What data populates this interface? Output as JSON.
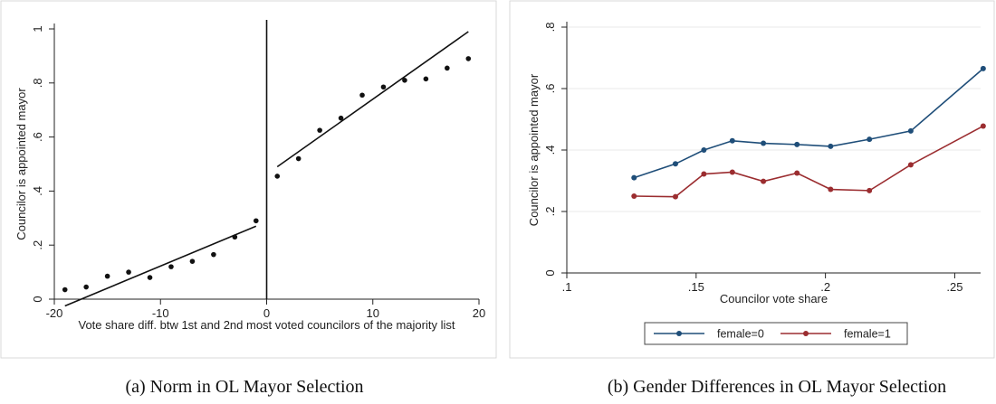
{
  "captions": {
    "left": "(a)  Norm in OL Mayor Selection",
    "right": "(b)  Gender Differences in OL Mayor Selection"
  },
  "chart_data": [
    {
      "type": "scatter",
      "title": "",
      "xlabel": "Vote share diff. btw 1st and 2nd most voted councilors of the majority list",
      "ylabel": "Councilor is appointed mayor",
      "xlim": [
        -20,
        20
      ],
      "ylim": [
        0,
        1
      ],
      "xticks": [
        -20,
        -10,
        0,
        10,
        20
      ],
      "xtick_labels": [
        "-20",
        "-10",
        "0",
        "10",
        "20"
      ],
      "yticks": [
        0,
        0.2,
        0.4,
        0.6,
        0.8,
        1
      ],
      "ytick_labels": [
        "0",
        ".2",
        ".4",
        ".6",
        ".8",
        "1"
      ],
      "grid": false,
      "cutoff": 0,
      "points": {
        "x": [
          -19,
          -17,
          -15,
          -13,
          -11,
          -9,
          -7,
          -5,
          -3,
          -1,
          1,
          3,
          5,
          7,
          9,
          11,
          13,
          15,
          17,
          19
        ],
        "y": [
          0.035,
          0.045,
          0.085,
          0.1,
          0.08,
          0.12,
          0.14,
          0.165,
          0.23,
          0.29,
          0.455,
          0.52,
          0.625,
          0.67,
          0.755,
          0.785,
          0.81,
          0.815,
          0.855,
          0.89
        ]
      },
      "fit_lines": [
        {
          "x": [
            -19,
            -1
          ],
          "y": [
            -0.025,
            0.27
          ]
        },
        {
          "x": [
            1,
            19
          ],
          "y": [
            0.49,
            0.99
          ]
        }
      ]
    },
    {
      "type": "line",
      "title": "",
      "xlabel": "Councilor vote share",
      "ylabel": "Councilor is appointed mayor",
      "xlim": [
        0.1,
        0.26
      ],
      "ylim": [
        0,
        0.8
      ],
      "xticks": [
        0.1,
        0.15,
        0.2,
        0.25
      ],
      "xtick_labels": [
        ".1",
        ".15",
        ".2",
        ".25"
      ],
      "yticks": [
        0,
        0.2,
        0.4,
        0.6,
        0.8
      ],
      "ytick_labels": [
        "0",
        ".2",
        ".4",
        ".6",
        ".8"
      ],
      "grid": true,
      "legend_position": "bottom",
      "series": [
        {
          "name": "female=0",
          "color": "#1f4e79",
          "x": [
            0.126,
            0.142,
            0.153,
            0.164,
            0.176,
            0.189,
            0.202,
            0.217,
            0.233,
            0.261
          ],
          "y": [
            0.31,
            0.355,
            0.4,
            0.43,
            0.422,
            0.418,
            0.412,
            0.435,
            0.462,
            0.665
          ]
        },
        {
          "name": "female=1",
          "color": "#9b2d30",
          "x": [
            0.126,
            0.142,
            0.153,
            0.164,
            0.176,
            0.189,
            0.202,
            0.217,
            0.233,
            0.261
          ],
          "y": [
            0.25,
            0.248,
            0.322,
            0.328,
            0.298,
            0.325,
            0.272,
            0.268,
            0.352,
            0.478
          ]
        }
      ]
    }
  ]
}
